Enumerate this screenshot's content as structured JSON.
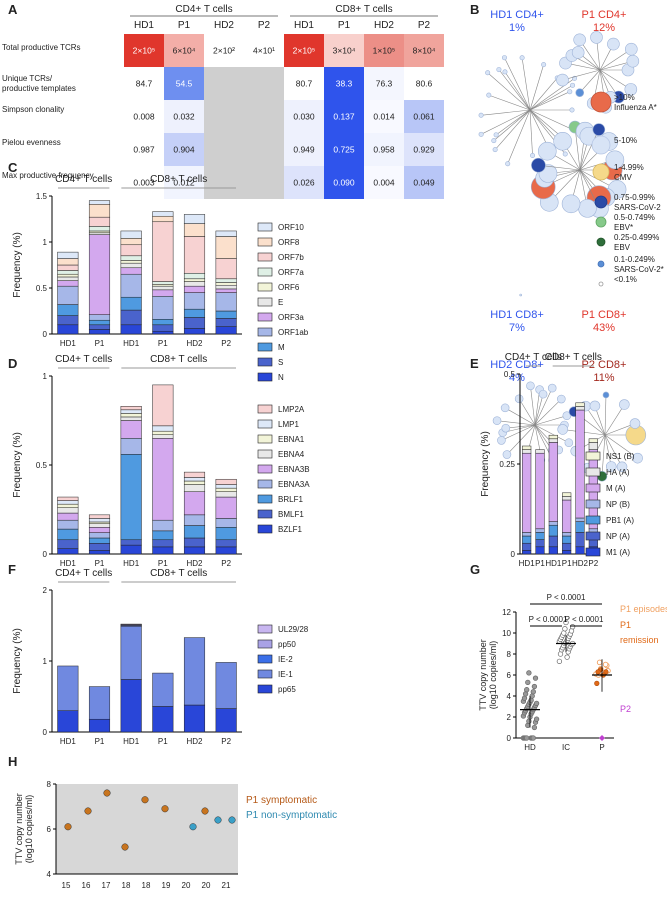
{
  "panel_letters": [
    "A",
    "B",
    "C",
    "D",
    "E",
    "F",
    "G",
    "H"
  ],
  "panelA": {
    "groups": [
      "CD4+ T cells",
      "CD8+ T cells"
    ],
    "columns": [
      "HD1",
      "P1",
      "HD2",
      "P2",
      "HD1",
      "P1",
      "HD2",
      "P2"
    ],
    "rows": [
      {
        "label": "Total productive TCRs",
        "cells": [
          {
            "v": "2×10⁵",
            "c": "#e0362c",
            "t": "#fff"
          },
          {
            "v": "6×10⁴",
            "c": "#f3aea8",
            "t": "#222"
          },
          {
            "v": "2×10²",
            "c": "#ffffff",
            "t": "#222"
          },
          {
            "v": "4×10¹",
            "c": "#ffffff",
            "t": "#222"
          },
          {
            "v": "2×10⁵",
            "c": "#e0362c",
            "t": "#fff"
          },
          {
            "v": "3×10⁴",
            "c": "#f8d0cc",
            "t": "#222"
          },
          {
            "v": "1×10⁵",
            "c": "#ec8f87",
            "t": "#222"
          },
          {
            "v": "8×10⁴",
            "c": "#f0a49c",
            "t": "#222"
          }
        ]
      },
      {
        "label": "Unique TCRs/ productive templates",
        "cells": [
          {
            "v": "84.7",
            "c": "#ffffff",
            "t": "#222"
          },
          {
            "v": "54.5",
            "c": "#6e8ff0",
            "t": "#fff"
          },
          {
            "v": "",
            "c": "#cfcfcf",
            "t": "#222"
          },
          {
            "v": "",
            "c": "#cfcfcf",
            "t": "#222"
          },
          {
            "v": "80.7",
            "c": "#ffffff",
            "t": "#222"
          },
          {
            "v": "38.3",
            "c": "#2f54ec",
            "t": "#fff"
          },
          {
            "v": "76.3",
            "c": "#f4f6fe",
            "t": "#222"
          },
          {
            "v": "80.6",
            "c": "#ffffff",
            "t": "#222"
          }
        ]
      },
      {
        "label": "Simpson clonality",
        "cells": [
          {
            "v": "0.008",
            "c": "#ffffff",
            "t": "#222"
          },
          {
            "v": "0.032",
            "c": "#eef1fd",
            "t": "#222"
          },
          {
            "v": "",
            "c": "#cfcfcf",
            "t": "#222"
          },
          {
            "v": "",
            "c": "#cfcfcf",
            "t": "#222"
          },
          {
            "v": "0.030",
            "c": "#eef1fd",
            "t": "#222"
          },
          {
            "v": "0.137",
            "c": "#2f54ec",
            "t": "#fff"
          },
          {
            "v": "0.014",
            "c": "#f8f9ff",
            "t": "#222"
          },
          {
            "v": "0.061",
            "c": "#b8c6f7",
            "t": "#222"
          }
        ]
      },
      {
        "label": "Pielou evenness",
        "cells": [
          {
            "v": "0.987",
            "c": "#ffffff",
            "t": "#222"
          },
          {
            "v": "0.904",
            "c": "#c5d0f8",
            "t": "#222"
          },
          {
            "v": "",
            "c": "#cfcfcf",
            "t": "#222"
          },
          {
            "v": "",
            "c": "#cfcfcf",
            "t": "#222"
          },
          {
            "v": "0.949",
            "c": "#eef1fd",
            "t": "#222"
          },
          {
            "v": "0.725",
            "c": "#2f54ec",
            "t": "#fff"
          },
          {
            "v": "0.958",
            "c": "#f1f4fe",
            "t": "#222"
          },
          {
            "v": "0.929",
            "c": "#dde3fb",
            "t": "#222"
          }
        ]
      },
      {
        "label": "Max productive frequency",
        "cells": [
          {
            "v": "0.003",
            "c": "#ffffff",
            "t": "#222"
          },
          {
            "v": "0.012",
            "c": "#f1f4fe",
            "t": "#222"
          },
          {
            "v": "",
            "c": "#cfcfcf",
            "t": "#222"
          },
          {
            "v": "",
            "c": "#cfcfcf",
            "t": "#222"
          },
          {
            "v": "0.026",
            "c": "#dde3fb",
            "t": "#222"
          },
          {
            "v": "0.090",
            "c": "#2f54ec",
            "t": "#fff"
          },
          {
            "v": "0.004",
            "c": "#f8f9ff",
            "t": "#222"
          },
          {
            "v": "0.049",
            "c": "#b8c6f7",
            "t": "#222"
          }
        ]
      }
    ]
  },
  "panelB": {
    "networks": [
      {
        "title": "HD1 CD4+",
        "pct": "1%",
        "color": "#2f54ec"
      },
      {
        "title": "P1 CD4+",
        "pct": "12%",
        "color": "#e0362c"
      },
      {
        "title": "HD1 CD8+",
        "pct": "7%",
        "color": "#2f54ec"
      },
      {
        "title": "P1 CD8+",
        "pct": "43%",
        "color": "#e0362c"
      },
      {
        "title": "HD2 CD8+",
        "pct": "4%",
        "color": "#2f54ec"
      },
      {
        "title": "P2 CD8+",
        "pct": "11%",
        "color": "#a3281e"
      }
    ],
    "legend": [
      {
        "label": "&gt;10%|Influenza A*",
        "fill": "#e86a4a",
        "stroke": "#c4543a"
      },
      {
        "label": "5-10%",
        "fill": "#d8e4f6",
        "stroke": "#b8c8e6"
      },
      {
        "label": "1-4.99%|CMV",
        "fill": "#f5d98a",
        "stroke": "#d8b860"
      },
      {
        "label": "0.75-0.99%|SARS-CoV-2",
        "fill": "#2a4aa6",
        "stroke": "#203a88"
      },
      {
        "label": "0.5-0.749%|EBV*",
        "fill": "#86c98a",
        "stroke": "#5fa763"
      },
      {
        "label": "0.25-0.499%|EBV",
        "fill": "#2e6e3a",
        "stroke": "#24562c"
      },
      {
        "label": "0.1-0.249%|SARS-CoV-2*",
        "fill": "#5b8fd6",
        "stroke": "#4573b8"
      },
      {
        "label": "&lt;0.1%",
        "fill": "#ffffff",
        "stroke": "#999999"
      }
    ]
  },
  "chart_data": [
    {
      "panel": "C",
      "type": "bar",
      "stacked": true,
      "ylabel": "Frequency (%)",
      "ylim": [
        0,
        1.5
      ],
      "yticks": [
        "0",
        "0.5",
        "1",
        "1.5"
      ],
      "groups": [
        "CD4+ T cells",
        "CD8+ T cells"
      ],
      "categories": [
        "HD1",
        "P1",
        "HD1",
        "P1",
        "HD2",
        "P2"
      ],
      "series": [
        {
          "name": "N",
          "color": "#2946d8",
          "values": [
            0.1,
            0.05,
            0.1,
            0.03,
            0.06,
            0.08
          ]
        },
        {
          "name": "S",
          "color": "#4a63cc",
          "values": [
            0.1,
            0.05,
            0.16,
            0.07,
            0.12,
            0.09
          ]
        },
        {
          "name": "M",
          "color": "#4f9ae0",
          "values": [
            0.12,
            0.05,
            0.14,
            0.06,
            0.09,
            0.08
          ]
        },
        {
          "name": "ORF1ab",
          "color": "#a6b7e8",
          "values": [
            0.2,
            0.06,
            0.25,
            0.25,
            0.18,
            0.2
          ]
        },
        {
          "name": "ORF3a",
          "color": "#d3a8ee",
          "values": [
            0.06,
            0.87,
            0.07,
            0.07,
            0.07,
            0.04
          ]
        },
        {
          "name": "E",
          "color": "#e8e8e8",
          "values": [
            0.04,
            0.02,
            0.05,
            0.04,
            0.05,
            0.04
          ]
        },
        {
          "name": "ORF6",
          "color": "#f2f4d8",
          "values": [
            0.03,
            0.02,
            0.03,
            0.02,
            0.03,
            0.03
          ]
        },
        {
          "name": "ORF7a",
          "color": "#dff0e6",
          "values": [
            0.04,
            0.05,
            0.05,
            0.03,
            0.06,
            0.04
          ]
        },
        {
          "name": "ORF7b",
          "color": "#f7d2d2",
          "values": [
            0.06,
            0.1,
            0.12,
            0.65,
            0.4,
            0.22
          ]
        },
        {
          "name": "ORF8",
          "color": "#fbe0cc",
          "values": [
            0.07,
            0.14,
            0.07,
            0.06,
            0.14,
            0.24
          ]
        },
        {
          "name": "ORF10",
          "color": "#dde8f8",
          "values": [
            0.07,
            0.04,
            0.08,
            0.05,
            0.1,
            0.06
          ]
        }
      ]
    },
    {
      "panel": "D",
      "type": "bar",
      "stacked": true,
      "ylabel": "Frequency (%)",
      "ylim": [
        0,
        1
      ],
      "yticks": [
        "0",
        "0.5",
        "1"
      ],
      "groups": [
        "CD4+ T cells",
        "CD8+ T cells"
      ],
      "categories": [
        "HD1",
        "P1",
        "HD1",
        "P1",
        "HD2",
        "P2"
      ],
      "series": [
        {
          "name": "BZLF1",
          "color": "#2946d8",
          "values": [
            0.03,
            0.02,
            0.05,
            0.04,
            0.04,
            0.04
          ]
        },
        {
          "name": "BMLF1",
          "color": "#4a63cc",
          "values": [
            0.05,
            0.04,
            0.03,
            0.04,
            0.05,
            0.04
          ]
        },
        {
          "name": "BRLF1",
          "color": "#4f9ae0",
          "values": [
            0.06,
            0.03,
            0.48,
            0.05,
            0.07,
            0.07
          ]
        },
        {
          "name": "EBNA3A",
          "color": "#a6b7e8",
          "values": [
            0.05,
            0.03,
            0.09,
            0.06,
            0.06,
            0.05
          ]
        },
        {
          "name": "EBNA3B",
          "color": "#d3a8ee",
          "values": [
            0.04,
            0.03,
            0.1,
            0.46,
            0.13,
            0.12
          ]
        },
        {
          "name": "EBNA4",
          "color": "#e8e8e8",
          "values": [
            0.03,
            0.02,
            0.02,
            0.02,
            0.04,
            0.03
          ]
        },
        {
          "name": "EBNA1",
          "color": "#f2f4d8",
          "values": [
            0.02,
            0.01,
            0.02,
            0.02,
            0.02,
            0.02
          ]
        },
        {
          "name": "LMP1",
          "color": "#dde8f8",
          "values": [
            0.02,
            0.02,
            0.02,
            0.03,
            0.02,
            0.02
          ]
        },
        {
          "name": "LMP2A",
          "color": "#f7d2d2",
          "values": [
            0.02,
            0.02,
            0.02,
            0.23,
            0.03,
            0.03
          ]
        }
      ]
    },
    {
      "panel": "E",
      "type": "bar",
      "stacked": true,
      "ylabel": "Frequency (%)",
      "ylim": [
        0,
        0.5
      ],
      "yticks": [
        "0",
        "0.25",
        "0.5"
      ],
      "groups": [
        "CD4+ T cells",
        "CD8+ T cells"
      ],
      "categories": [
        "HD1",
        "P1",
        "HD1",
        "P1",
        "HD2",
        "P2"
      ],
      "series": [
        {
          "name": "M1 (A)",
          "color": "#2946d8",
          "values": [
            0.01,
            0.02,
            0.02,
            0.01,
            0.02,
            0.02
          ]
        },
        {
          "name": "NP (A)",
          "color": "#4a63cc",
          "values": [
            0.02,
            0.02,
            0.03,
            0.02,
            0.04,
            0.02
          ]
        },
        {
          "name": "PB1 (A)",
          "color": "#4f9ae0",
          "values": [
            0.02,
            0.02,
            0.03,
            0.02,
            0.03,
            0.02
          ]
        },
        {
          "name": "NP (B)",
          "color": "#a6b7e8",
          "values": [
            0.01,
            0.01,
            0.01,
            0.01,
            0.01,
            0.01
          ]
        },
        {
          "name": "M (A)",
          "color": "#d3a8ee",
          "values": [
            0.22,
            0.21,
            0.22,
            0.09,
            0.3,
            0.22
          ]
        },
        {
          "name": "HA (A)",
          "color": "#e8e8e8",
          "values": [
            0.01,
            0.01,
            0.01,
            0.01,
            0.01,
            0.02
          ]
        },
        {
          "name": "NS1 (B)",
          "color": "#f2f4d8",
          "values": [
            0.01,
            0.0,
            0.01,
            0.01,
            0.01,
            0.01
          ]
        }
      ]
    },
    {
      "panel": "F",
      "type": "bar",
      "stacked": true,
      "ylabel": "Frequency (%)",
      "ylim": [
        0,
        2
      ],
      "yticks": [
        "0",
        "1",
        "2"
      ],
      "groups": [
        "CD4+ T cells",
        "CD8+ T cells"
      ],
      "categories": [
        "HD1",
        "P1",
        "HD1",
        "P1",
        "HD2",
        "P2"
      ],
      "series": [
        {
          "name": "pp65",
          "color": "#2946d8",
          "values": [
            0.3,
            0.18,
            0.74,
            0.36,
            0.38,
            0.33
          ]
        },
        {
          "name": "IE-1",
          "color": "#7089e0",
          "values": [
            0.63,
            0.46,
            0.75,
            0.47,
            0.95,
            0.65
          ]
        },
        {
          "name": "IE-2",
          "color": "#3b6fe8",
          "values": [
            0.0,
            0.0,
            0.01,
            0.0,
            0.0,
            0.0
          ]
        },
        {
          "name": "pp50",
          "color": "#a9a2e6",
          "values": [
            0.0,
            0.0,
            0.01,
            0.0,
            0.0,
            0.0
          ]
        },
        {
          "name": "UL29/28",
          "color": "#c8b6f0",
          "values": [
            0.0,
            0.0,
            0.01,
            0.0,
            0.0,
            0.0
          ]
        }
      ]
    },
    {
      "panel": "G",
      "type": "scatter",
      "ylabel": "TTV copy number|(log10 copies/ml)",
      "ylim": [
        0,
        12
      ],
      "yticks": [
        "0",
        "2",
        "4",
        "6",
        "8",
        "10",
        "12"
      ],
      "categories": [
        "HD",
        "IC",
        "P"
      ],
      "pvalues": [
        "P < 0.0001",
        "P < 0.0001",
        "P < 0.0001"
      ],
      "legend": [
        {
          "label": "P1 episodes",
          "color": "#f0a060"
        },
        {
          "label": "P1",
          "color": "#e06a18"
        },
        {
          "label": "remission",
          "color": "#e06a18"
        },
        {
          "label": "P2",
          "color": "#c040d0"
        }
      ],
      "points": {
        "HD": [
          0,
          0,
          0,
          0,
          0,
          0,
          0,
          1.0,
          1.2,
          1.5,
          1.6,
          1.8,
          2.0,
          2.1,
          2.3,
          2.4,
          2.5,
          2.6,
          2.7,
          2.8,
          2.9,
          3.0,
          3.1,
          3.2,
          3.3,
          3.4,
          3.5,
          3.6,
          3.8,
          4.0,
          4.2,
          4.4,
          4.6,
          4.9,
          5.3,
          5.7,
          6.2
        ],
        "HD_mean": 2.7,
        "HD_sd": [
          1.0,
          4.0
        ],
        "IC": [
          7.3,
          7.7,
          8.0,
          8.2,
          8.4,
          8.5,
          8.6,
          8.7,
          8.8,
          8.9,
          9.0,
          9.0,
          9.1,
          9.2,
          9.3,
          9.4,
          9.5,
          9.6,
          9.7,
          9.8,
          9.9,
          10.0,
          10.2,
          10.4,
          10.6,
          11.0
        ],
        "IC_mean": 9.0,
        "IC_sd": [
          8.2,
          9.8
        ],
        "P1_episodes": [
          6.1,
          6.2,
          6.4,
          6.6,
          6.9,
          7.2,
          7.0,
          6.0
        ],
        "P1_remission": [
          5.2,
          6.3,
          6.0,
          6.5,
          6.3
        ],
        "P2": [
          0
        ],
        "P_mean": 6.0,
        "P_sd": [
          4.4,
          7.5
        ]
      }
    },
    {
      "panel": "H",
      "type": "scatter",
      "ylabel": "TTV copy number|(log10 copies/ml)",
      "ylim": [
        4,
        8
      ],
      "yticks": [
        "4",
        "6",
        "8"
      ],
      "xticks": [
        "15",
        "16",
        "17",
        "18",
        "18",
        "19",
        "20",
        "20",
        "21"
      ],
      "legend": [
        {
          "label": "P1 symptomatic",
          "color": "#b65a18"
        },
        {
          "label": "P1 non-symptomatic",
          "color": "#2f8ab0"
        }
      ],
      "points": [
        {
          "y": 6.1,
          "state": "sym"
        },
        {
          "y": 6.8,
          "state": "sym"
        },
        {
          "y": 7.6,
          "state": "sym"
        },
        {
          "y": 5.2,
          "state": "sym"
        },
        {
          "y": 7.3,
          "state": "sym"
        },
        {
          "y": 6.9,
          "state": "sym"
        },
        {
          "y": 6.1,
          "state": "non"
        },
        {
          "y": 6.8,
          "state": "sym"
        },
        {
          "y": 6.4,
          "state": "non"
        },
        {
          "y": 6.4,
          "state": "non"
        }
      ]
    }
  ]
}
